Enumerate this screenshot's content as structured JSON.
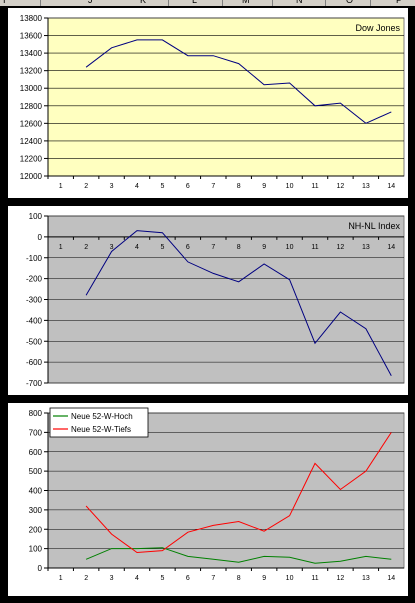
{
  "spreadsheet": {
    "column_headers": [
      "I",
      "J",
      "K",
      "L",
      "M",
      "N",
      "O",
      "P"
    ]
  },
  "chart_data": [
    {
      "type": "line",
      "title": "Dow Jones",
      "x": [
        1,
        2,
        3,
        4,
        5,
        6,
        7,
        8,
        9,
        10,
        11,
        12,
        13,
        14
      ],
      "ylim": [
        12000,
        13800
      ],
      "yticks": [
        12000,
        12200,
        12400,
        12600,
        12800,
        13000,
        13200,
        13400,
        13600,
        13800
      ],
      "background": "#ffffc0",
      "series": [
        {
          "color": "#000080",
          "values": [
            null,
            13240,
            13460,
            13550,
            13550,
            13370,
            13370,
            13280,
            13040,
            13060,
            12800,
            12830,
            12600,
            12730
          ]
        }
      ]
    },
    {
      "type": "line",
      "title": "NH-NL Index",
      "x": [
        1,
        2,
        3,
        4,
        5,
        6,
        7,
        8,
        9,
        10,
        11,
        12,
        13,
        14
      ],
      "ylim": [
        -700,
        100
      ],
      "yticks": [
        100,
        0,
        -100,
        -200,
        -300,
        -400,
        -500,
        -600,
        -700
      ],
      "background": "#c0c0c0",
      "series": [
        {
          "color": "#000080",
          "values": [
            null,
            -280,
            -70,
            30,
            20,
            -120,
            -175,
            -215,
            -130,
            -205,
            -510,
            -360,
            -440,
            -665
          ]
        }
      ]
    },
    {
      "type": "line",
      "x": [
        1,
        2,
        3,
        4,
        5,
        6,
        7,
        8,
        9,
        10,
        11,
        12,
        13,
        14
      ],
      "ylim": [
        0,
        800
      ],
      "yticks": [
        0,
        100,
        200,
        300,
        400,
        500,
        600,
        700,
        800
      ],
      "background": "#c0c0c0",
      "legend_position": "top-left",
      "series": [
        {
          "name": "Neue 52-W-Hoch",
          "color": "#008000",
          "values": [
            null,
            45,
            100,
            100,
            105,
            60,
            45,
            30,
            60,
            55,
            25,
            35,
            60,
            45
          ]
        },
        {
          "name": "Neue 52-W-Tiefs",
          "color": "#ff0000",
          "values": [
            null,
            320,
            175,
            80,
            90,
            185,
            220,
            240,
            190,
            270,
            540,
            405,
            500,
            700
          ]
        }
      ]
    }
  ]
}
